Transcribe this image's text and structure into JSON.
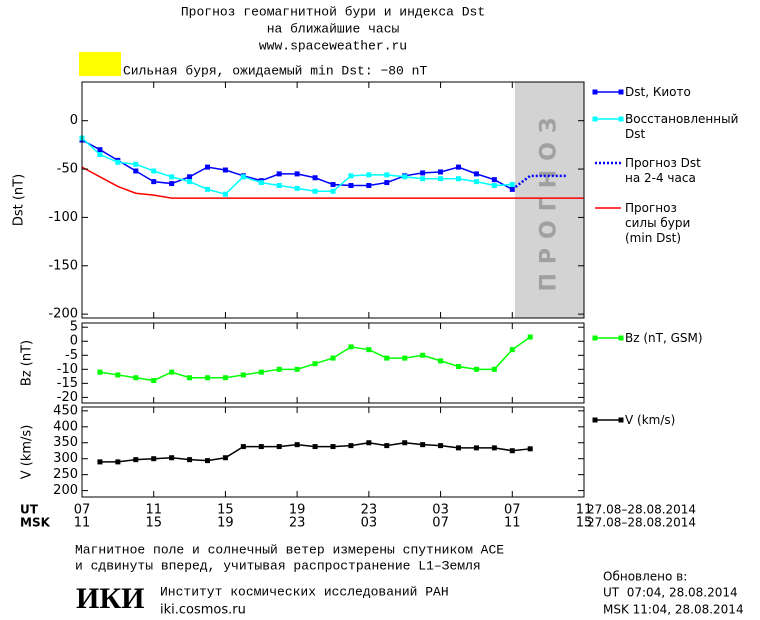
{
  "header": {
    "title": "Прогноз геомагнитной бури и индекса Dst",
    "subtitle": "на ближайшие часы",
    "site": "www.spaceweather.ru"
  },
  "alert": {
    "color": "#ffff00",
    "text": "Сильная буря, ожидаемый min Dst: −80 nT"
  },
  "x_axis": {
    "xlim": [
      0,
      28
    ],
    "ut": {
      "label": "UT",
      "dates": "27.08–28.08.2014",
      "ticks": [
        {
          "value": 0,
          "label": "07"
        },
        {
          "value": 4,
          "label": "11"
        },
        {
          "value": 8,
          "label": "15"
        },
        {
          "value": 12,
          "label": "19"
        },
        {
          "value": 16,
          "label": "23"
        },
        {
          "value": 20,
          "label": "03"
        },
        {
          "value": 24,
          "label": "07"
        },
        {
          "value": 28,
          "label": "11"
        }
      ]
    },
    "msk": {
      "label": "MSK",
      "dates": "27.08–28.08.2014",
      "ticks": [
        {
          "value": 0,
          "label": "11"
        },
        {
          "value": 4,
          "label": "15"
        },
        {
          "value": 8,
          "label": "19"
        },
        {
          "value": 12,
          "label": "23"
        },
        {
          "value": 16,
          "label": "03"
        },
        {
          "value": 20,
          "label": "07"
        },
        {
          "value": 24,
          "label": "11"
        },
        {
          "value": 28,
          "label": "15"
        }
      ]
    }
  },
  "chart_data": [
    {
      "type": "line",
      "y_label": "Dst (nT)",
      "ylim": [
        -204,
        40
      ],
      "yticks": [
        -200,
        -150,
        -100,
        -50,
        0
      ],
      "band": {
        "x": [
          24.15,
          28
        ],
        "label": "ПРОГНОЗ",
        "color": "#d3d3d3"
      },
      "series": [
        {
          "name": "Dst, Киото",
          "color": "#0000ff",
          "marker": "square",
          "dashed": false,
          "x": [
            0,
            1,
            2,
            3,
            4,
            5,
            6,
            7,
            8,
            9,
            10,
            11,
            12,
            13,
            14,
            15,
            16,
            17,
            18,
            19,
            20,
            21,
            22,
            23,
            24
          ],
          "values": [
            -20,
            -30,
            -41,
            -52,
            -63,
            -65,
            -58,
            -48,
            -51,
            -57,
            -62,
            -55,
            -55,
            -59,
            -66,
            -67,
            -67,
            -64,
            -57,
            -54,
            -53,
            -48,
            -55,
            -61,
            -71
          ]
        },
        {
          "name": "Восстановленный\nDst",
          "color": "#00ffff",
          "marker": "square",
          "dashed": false,
          "x": [
            0,
            1,
            2,
            3,
            4,
            5,
            6,
            7,
            8,
            9,
            10,
            11,
            12,
            13,
            14,
            15,
            16,
            17,
            18,
            19,
            20,
            21,
            22,
            23,
            24
          ],
          "values": [
            -18,
            -35,
            -43,
            -45,
            -52,
            -58,
            -63,
            -71,
            -76,
            -58,
            -64,
            -67,
            -70,
            -73,
            -73,
            -57,
            -56,
            -56,
            -58,
            -60,
            -60,
            -60,
            -63,
            -67,
            -66
          ]
        },
        {
          "name": "Прогноз Dst\nна 2-4 часа",
          "color": "#0000ff",
          "marker": "none",
          "dashed": true,
          "x": [
            24,
            25,
            26,
            27
          ],
          "values": [
            -71,
            -57,
            -57,
            -57
          ]
        },
        {
          "name": "Прогноз\nсилы бури\n(min Dst)",
          "color": "#ff0000",
          "marker": "none",
          "dashed": false,
          "x": [
            0,
            1,
            2,
            3,
            4,
            5,
            28
          ],
          "values": [
            -48,
            -58,
            -68,
            -75,
            -77,
            -80,
            -80
          ]
        }
      ]
    },
    {
      "type": "line",
      "y_label": "Bz (nT)",
      "ylim": [
        -22,
        6.5
      ],
      "yticks": [
        -20,
        -15,
        -10,
        -5,
        0,
        5
      ],
      "series": [
        {
          "name": "Bz (nT, GSM)",
          "color": "#00ff00",
          "marker": "square",
          "dashed": false,
          "x": [
            1,
            2,
            3,
            4,
            5,
            6,
            7,
            8,
            9,
            10,
            11,
            12,
            13,
            14,
            15,
            16,
            17,
            18,
            19,
            20,
            21,
            22,
            23,
            24,
            25
          ],
          "values": [
            -11,
            -12,
            -13,
            -14,
            -11,
            -13,
            -13,
            -13,
            -12,
            -11,
            -10,
            -10,
            -8,
            -6,
            -2,
            -3,
            -6,
            -6,
            -5,
            -7,
            -9,
            -10,
            -10,
            -3,
            1.5
          ]
        }
      ]
    },
    {
      "type": "line",
      "y_label": "V (km/s)",
      "ylim": [
        180,
        462
      ],
      "yticks": [
        200,
        250,
        300,
        350,
        400,
        450
      ],
      "series": [
        {
          "name": "V (km/s)",
          "color": "#000000",
          "marker": "square",
          "dashed": false,
          "x": [
            1,
            2,
            3,
            4,
            5,
            6,
            7,
            8,
            9,
            10,
            11,
            12,
            13,
            14,
            15,
            16,
            17,
            18,
            19,
            20,
            21,
            22,
            23,
            24,
            25
          ],
          "values": [
            290,
            290,
            297,
            300,
            303,
            297,
            294,
            303,
            338,
            338,
            338,
            344,
            338,
            338,
            341,
            350,
            341,
            350,
            344,
            341,
            334,
            334,
            334,
            325,
            331
          ]
        }
      ]
    }
  ],
  "footer": {
    "note_1": "Магнитное поле и солнечный ветер измерены спутником ACE",
    "note_2": "и сдвинуты вперед, учитывая распространение L1–Земля",
    "logo": "ИКИ",
    "institute": "Институт космических исследований РАН",
    "site": "iki.cosmos.ru",
    "updated": "Обновлено в:",
    "updated_ut": "UT  07:04, 28.08.2014",
    "updated_msk": "MSK 11:04, 28.08.2014"
  }
}
